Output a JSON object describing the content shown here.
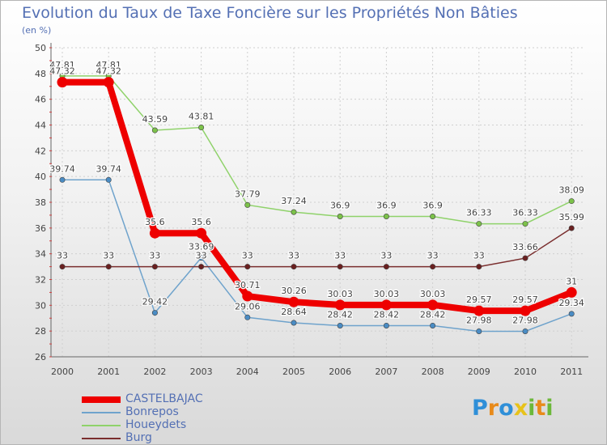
{
  "chart_data": {
    "type": "line",
    "title": "Evolution du Taux de Taxe Foncière sur les Propriétés Non Bâties",
    "ylabel": "(en %)",
    "xlabel": "",
    "ylim": [
      26,
      50
    ],
    "yticks": [
      "26",
      "28",
      "30",
      "32",
      "34",
      "36",
      "38",
      "40",
      "42",
      "44",
      "46",
      "48",
      "50"
    ],
    "categories": [
      "2000",
      "2001",
      "2002",
      "2003",
      "2004",
      "2005",
      "2006",
      "2007",
      "2008",
      "2009",
      "2010",
      "2011"
    ],
    "series": [
      {
        "name": "Houeydets",
        "color": "#8fd26a",
        "marker": "#7cc24a",
        "values": [
          47.81,
          47.81,
          43.59,
          43.81,
          37.79,
          37.24,
          36.9,
          36.9,
          36.9,
          36.33,
          36.33,
          38.09
        ],
        "labels": [
          "47.81",
          "47.81",
          "43.59",
          "43.81",
          "37.79",
          "37.24",
          "36.9",
          "36.9",
          "36.9",
          "36.33",
          "36.33",
          "38.09"
        ]
      },
      {
        "name": "Bonrepos",
        "color": "#6fa3cc",
        "marker": "#4a8cc4",
        "values": [
          39.74,
          39.74,
          29.42,
          33.69,
          29.06,
          28.64,
          28.42,
          28.42,
          28.42,
          27.98,
          27.98,
          29.34
        ],
        "labels": [
          "39.74",
          "39.74",
          "29.42",
          "33.69",
          "29.06",
          "28.64",
          "28.42",
          "28.42",
          "28.42",
          "27.98",
          "27.98",
          "29.34"
        ]
      },
      {
        "name": "Burg",
        "color": "#7a2e2e",
        "marker": "#6a2020",
        "values": [
          33,
          33,
          33,
          33,
          33,
          33,
          33,
          33,
          33,
          33,
          33.66,
          35.99
        ],
        "labels": [
          "33",
          "33",
          "33",
          "33",
          "33",
          "33",
          "33",
          "33",
          "33",
          "33",
          "33.66",
          "35.99"
        ]
      },
      {
        "name": "CASTELBAJAC",
        "color": "#ee0000",
        "marker": "#ee0000",
        "values": [
          47.32,
          47.32,
          35.6,
          35.6,
          30.71,
          30.26,
          30.03,
          30.03,
          30.03,
          29.57,
          29.57,
          31
        ],
        "labels": [
          "47.32",
          "47.32",
          "35.6",
          "35.6",
          "30.71",
          "30.26",
          "30.03",
          "30.03",
          "30.03",
          "29.57",
          "29.57",
          "31"
        ]
      }
    ],
    "legend": [
      "CASTELBAJAC",
      "Bonrepos",
      "Houeydets",
      "Burg"
    ],
    "legend_position": "bottom-left"
  },
  "logo": {
    "letters": [
      "P",
      "r",
      "o",
      "x",
      "i",
      "t",
      "i"
    ],
    "colors": [
      "#2f8fd8",
      "#e88a1a",
      "#2f8fd8",
      "#e8c21a",
      "#6cb83a",
      "#e88a1a",
      "#6cb83a"
    ]
  }
}
